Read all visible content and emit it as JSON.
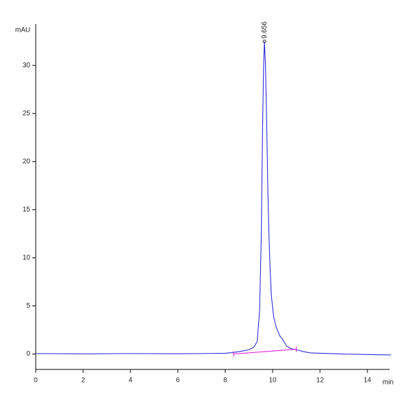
{
  "chart_data": {
    "type": "line",
    "y_label": "mAU",
    "x_label": "min",
    "peak_label": "9.656",
    "peak_x": 9.656,
    "peak_y": 32.5,
    "xlim": [
      0,
      15
    ],
    "ylim": [
      -1.6,
      34.3
    ],
    "xticks": [
      0,
      2,
      4,
      6,
      8,
      10,
      12,
      14
    ],
    "yticks": [
      0,
      5,
      10,
      15,
      20,
      25,
      30
    ],
    "series": [
      {
        "name": "Signal",
        "color": "#2b2bdc",
        "x": [
          0,
          2,
          4,
          6,
          7,
          8,
          8.3,
          8.6,
          9.0,
          9.2,
          9.35,
          9.45,
          9.52,
          9.58,
          9.62,
          9.656,
          9.7,
          9.75,
          9.8,
          9.85,
          9.9,
          9.95,
          10.05,
          10.15,
          10.3,
          10.4,
          10.5,
          10.6,
          10.8,
          11.0,
          11.3,
          11.6,
          12.0,
          13.0,
          14.0,
          15.0
        ],
        "values": [
          0.05,
          0.02,
          0.05,
          0.03,
          0.05,
          0.08,
          0.15,
          0.25,
          0.45,
          0.7,
          1.3,
          4.5,
          12,
          24,
          30,
          32.5,
          30,
          24,
          17,
          12,
          8.5,
          6,
          3.8,
          2.8,
          1.9,
          1.6,
          1.2,
          0.8,
          0.55,
          0.45,
          0.25,
          0.12,
          0.08,
          0.0,
          -0.05,
          -0.1
        ]
      },
      {
        "name": "Baseline",
        "color": "#e020e0",
        "x": [
          8.35,
          11.0
        ],
        "values": [
          0.0,
          0.5
        ]
      }
    ]
  }
}
